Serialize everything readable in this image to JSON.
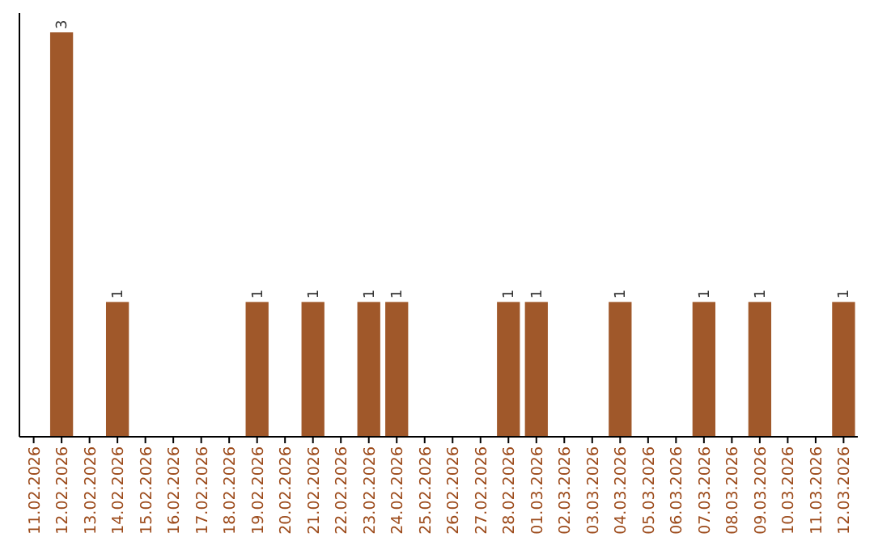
{
  "chart_data": {
    "type": "bar",
    "categories": [
      "11.02.2026",
      "12.02.2026",
      "13.02.2026",
      "14.02.2026",
      "15.02.2026",
      "16.02.2026",
      "17.02.2026",
      "18.02.2026",
      "19.02.2026",
      "20.02.2026",
      "21.02.2026",
      "22.02.2026",
      "23.02.2026",
      "24.02.2026",
      "25.02.2026",
      "26.02.2026",
      "27.02.2026",
      "28.02.2026",
      "01.03.2026",
      "02.03.2026",
      "03.03.2026",
      "04.03.2026",
      "05.03.2026",
      "06.03.2026",
      "07.03.2026",
      "08.03.2026",
      "09.03.2026",
      "10.03.2026",
      "11.03.2026",
      "12.03.2026"
    ],
    "values": [
      0,
      3,
      0,
      1,
      0,
      0,
      0,
      0,
      1,
      0,
      1,
      0,
      1,
      1,
      0,
      0,
      0,
      1,
      1,
      0,
      0,
      1,
      0,
      0,
      1,
      0,
      1,
      0,
      0,
      1
    ],
    "value_labels": [
      null,
      "3",
      null,
      "1",
      null,
      null,
      null,
      null,
      "1",
      null,
      "1",
      null,
      "1",
      "1",
      null,
      null,
      null,
      "1",
      "1",
      null,
      null,
      "1",
      null,
      null,
      "1",
      null,
      "1",
      null,
      null,
      "1"
    ],
    "color": "#a0582a",
    "tick_labels": "x"
  }
}
